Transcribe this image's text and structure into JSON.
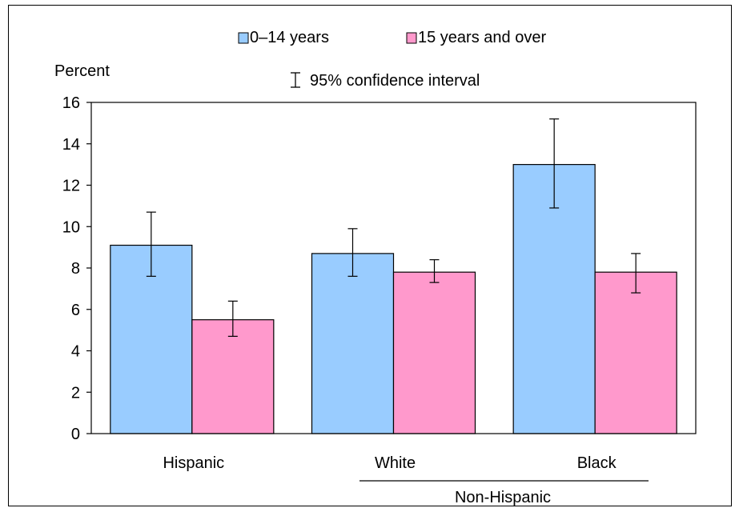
{
  "chart_data": {
    "type": "bar",
    "categories": [
      "Hispanic",
      "White",
      "Black"
    ],
    "group_label": "Non-Hispanic",
    "ylabel": "Percent",
    "ylim": [
      0,
      16
    ],
    "yticks": [
      0,
      2,
      4,
      6,
      8,
      10,
      12,
      14,
      16
    ],
    "grid": false,
    "legend_position": "top",
    "error_bar_label": "95% confidence interval",
    "series": [
      {
        "name": "0–14 years",
        "color": "#99ccff",
        "values": [
          9.1,
          8.7,
          13.0
        ],
        "ci_low": [
          7.6,
          7.6,
          10.9
        ],
        "ci_high": [
          10.7,
          9.9,
          15.2
        ]
      },
      {
        "name": "15 years and over",
        "color": "#ff99cc",
        "values": [
          5.5,
          7.8,
          7.8
        ],
        "ci_low": [
          4.7,
          7.3,
          6.8
        ],
        "ci_high": [
          6.4,
          8.4,
          8.7
        ]
      }
    ]
  }
}
